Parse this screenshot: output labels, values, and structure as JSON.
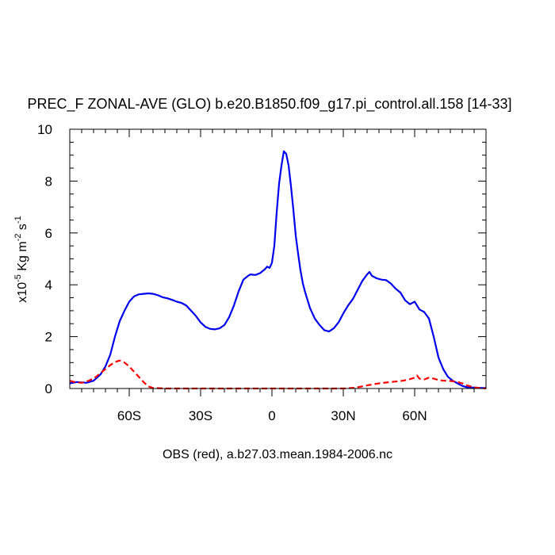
{
  "chart_data": {
    "type": "line",
    "title": "PREC_F ZONAL-AVE (GLO) b.e20.B1850.f09_g17.pi_control.all.158 [14-33]",
    "xlabel": "OBS (red), a.b27.03.mean.1984-2006.nc",
    "ylabel": {
      "prefix": "x10",
      "exp": "-5",
      "units_a": " Kg m",
      "exp2": "-2",
      "units_b": " s",
      "exp3": "-1"
    },
    "xlim": [
      -85,
      90
    ],
    "ylim": [
      0,
      10
    ],
    "x_ticks": [
      {
        "value": -60,
        "label": "60S"
      },
      {
        "value": -30,
        "label": "30S"
      },
      {
        "value": 0,
        "label": "0"
      },
      {
        "value": 30,
        "label": "30N"
      },
      {
        "value": 60,
        "label": "60N"
      }
    ],
    "y_ticks": [
      {
        "value": 0,
        "label": "0"
      },
      {
        "value": 2,
        "label": "2"
      },
      {
        "value": 4,
        "label": "4"
      },
      {
        "value": 6,
        "label": "6"
      },
      {
        "value": 8,
        "label": "8"
      },
      {
        "value": 10,
        "label": "10"
      }
    ],
    "series": [
      {
        "color": "#0000ee",
        "style": "solid",
        "x": [
          -85,
          -82,
          -78,
          -75,
          -72,
          -70,
          -68,
          -66,
          -64,
          -62,
          -60,
          -58,
          -56,
          -54,
          -52,
          -50,
          -48,
          -46,
          -44,
          -42,
          -40,
          -38,
          -36,
          -34,
          -32,
          -30,
          -28,
          -26,
          -24,
          -22,
          -20,
          -18,
          -16,
          -14,
          -12,
          -10,
          -9,
          -7,
          -5,
          -3,
          -2,
          -1,
          0,
          1,
          2,
          3,
          4,
          5,
          6,
          7,
          8,
          9,
          10,
          11,
          12,
          13,
          14,
          15,
          16,
          18,
          20,
          22,
          24,
          26,
          28,
          30,
          32,
          34,
          36,
          38,
          40,
          41,
          42,
          44,
          46,
          48,
          50,
          52,
          54,
          56,
          58,
          60,
          62,
          64,
          66,
          68,
          70,
          72,
          74,
          76,
          78,
          80,
          82,
          84,
          86,
          88,
          90
        ],
        "values": [
          0.2,
          0.25,
          0.22,
          0.3,
          0.55,
          0.85,
          1.3,
          2.0,
          2.6,
          3.0,
          3.35,
          3.55,
          3.63,
          3.65,
          3.67,
          3.65,
          3.6,
          3.52,
          3.48,
          3.42,
          3.35,
          3.3,
          3.2,
          3.0,
          2.8,
          2.55,
          2.38,
          2.3,
          2.28,
          2.32,
          2.45,
          2.75,
          3.2,
          3.75,
          4.2,
          4.35,
          4.4,
          4.38,
          4.45,
          4.6,
          4.7,
          4.65,
          4.85,
          5.5,
          6.8,
          7.9,
          8.6,
          9.15,
          9.05,
          8.6,
          7.8,
          6.9,
          5.9,
          5.2,
          4.55,
          4.05,
          3.7,
          3.4,
          3.1,
          2.7,
          2.45,
          2.25,
          2.2,
          2.32,
          2.55,
          2.9,
          3.2,
          3.45,
          3.8,
          4.15,
          4.4,
          4.5,
          4.35,
          4.25,
          4.2,
          4.18,
          4.05,
          3.85,
          3.7,
          3.4,
          3.25,
          3.35,
          3.05,
          2.95,
          2.7,
          2.0,
          1.2,
          0.75,
          0.45,
          0.3,
          0.2,
          0.1,
          0.05,
          0.04,
          0.03,
          0.02,
          0.02
        ]
      },
      {
        "color": "#ff0000",
        "style": "dashed",
        "x": [
          -85,
          -83,
          -80,
          -77,
          -74,
          -72,
          -70,
          -68,
          -66,
          -64,
          -62,
          -60,
          -58,
          -56,
          -54,
          -52,
          -50,
          -45,
          -40,
          -30,
          -20,
          -10,
          0,
          10,
          20,
          30,
          35,
          40,
          45,
          50,
          55,
          58,
          60,
          61,
          62,
          64,
          66,
          68,
          70,
          72,
          74,
          76,
          78,
          80,
          82,
          85,
          90
        ],
        "values": [
          0.3,
          0.25,
          0.22,
          0.3,
          0.45,
          0.6,
          0.75,
          0.9,
          1.02,
          1.08,
          1.0,
          0.85,
          0.65,
          0.45,
          0.25,
          0.08,
          0.02,
          0.0,
          0.0,
          0.0,
          0.0,
          0.0,
          0.0,
          0.0,
          0.0,
          0.0,
          0.03,
          0.12,
          0.2,
          0.25,
          0.3,
          0.36,
          0.42,
          0.5,
          0.38,
          0.35,
          0.42,
          0.38,
          0.33,
          0.3,
          0.3,
          0.28,
          0.25,
          0.2,
          0.12,
          0.04,
          0.0
        ]
      }
    ]
  }
}
